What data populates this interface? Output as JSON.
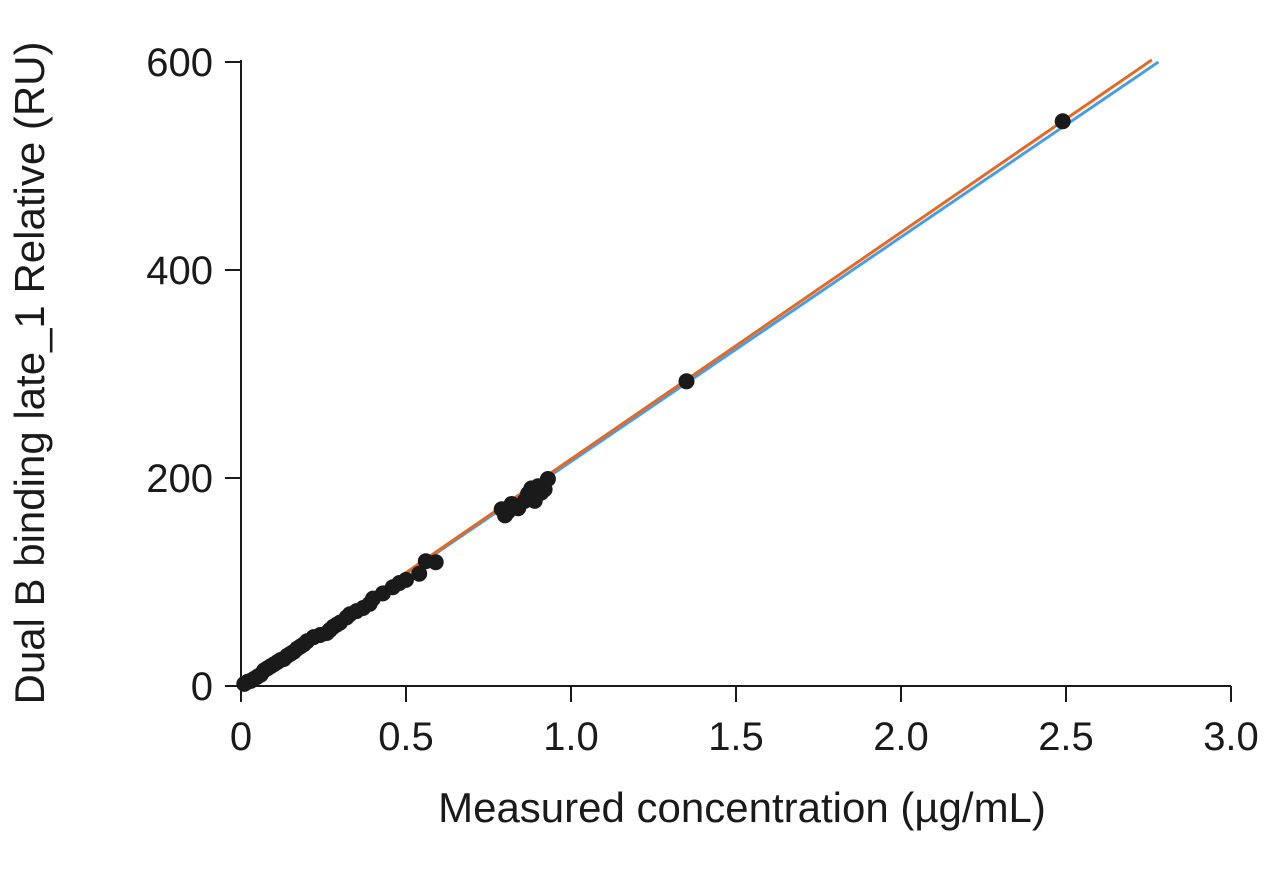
{
  "chart_data": {
    "type": "scatter",
    "xlabel": "Measured concentration (µg/mL)",
    "ylabel": "Dual B binding late_1 Relative (RU)",
    "xlim": [
      0,
      3.0
    ],
    "ylim": [
      0,
      600
    ],
    "xticks": [
      0,
      0.5,
      1.0,
      1.5,
      2.0,
      2.5,
      3.0
    ],
    "xtick_labels": [
      "0",
      "0.5",
      "1.0",
      "1.5",
      "2.0",
      "2.5",
      "3.0"
    ],
    "yticks": [
      0,
      200,
      400,
      600
    ],
    "ytick_labels": [
      "0",
      "200",
      "400",
      "600"
    ],
    "grid": false,
    "points": {
      "color": "#1a1a1a",
      "x": [
        0.01,
        0.02,
        0.03,
        0.04,
        0.05,
        0.06,
        0.07,
        0.08,
        0.09,
        0.1,
        0.11,
        0.12,
        0.13,
        0.14,
        0.15,
        0.16,
        0.17,
        0.18,
        0.19,
        0.2,
        0.22,
        0.24,
        0.26,
        0.27,
        0.28,
        0.29,
        0.3,
        0.32,
        0.33,
        0.35,
        0.37,
        0.39,
        0.4,
        0.43,
        0.46,
        0.48,
        0.5,
        0.54,
        0.56,
        0.59,
        0.79,
        0.8,
        0.81,
        0.82,
        0.84,
        0.86,
        0.87,
        0.88,
        0.89,
        0.9,
        0.91,
        0.92,
        0.93,
        1.35,
        2.49
      ],
      "y": [
        2,
        4,
        5,
        7,
        9,
        11,
        15,
        17,
        19,
        21,
        23,
        25,
        26,
        29,
        31,
        33,
        36,
        38,
        40,
        43,
        47,
        49,
        51,
        54,
        57,
        59,
        61,
        66,
        69,
        72,
        75,
        79,
        84,
        89,
        95,
        99,
        102,
        108,
        120,
        119,
        170,
        164,
        168,
        175,
        171,
        178,
        185,
        190,
        178,
        192,
        186,
        189,
        199,
        293,
        543
      ]
    },
    "series": [
      {
        "type": "line",
        "color": "#4b9de0",
        "x": [
          0,
          2.78
        ],
        "y": [
          0,
          600
        ]
      },
      {
        "type": "line",
        "color": "#e06a28",
        "x": [
          0,
          2.76
        ],
        "y": [
          0,
          602
        ]
      }
    ]
  }
}
